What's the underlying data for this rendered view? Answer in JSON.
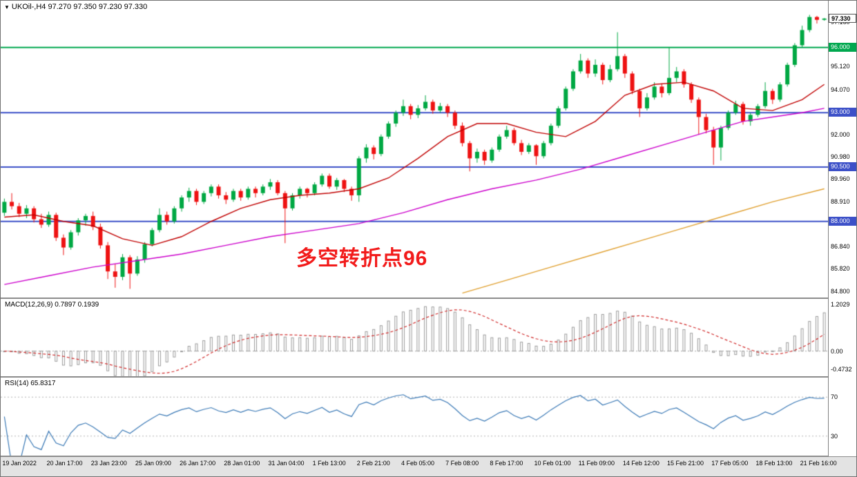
{
  "window": {
    "title_symbol": "UKOil-,H4",
    "title_ohlc": "97.270 97.350 97.230 97.330"
  },
  "chart_data": {
    "type": "candlestick",
    "symbol": "UKOil-",
    "timeframe": "H4",
    "ylim": [
      84.5,
      98.15
    ],
    "colors": {
      "up": "#00a843",
      "down": "#ee1212",
      "background": "#ffffff"
    },
    "x_label_step": 6,
    "x_labels": [
      "19 Jan 2022",
      "20 Jan 17:00",
      "23 Jan 23:00",
      "25 Jan 09:00",
      "26 Jan 17:00",
      "28 Jan 01:00",
      "31 Jan 04:00",
      "1 Feb 13:00",
      "2 Feb 21:00",
      "4 Feb 05:00",
      "7 Feb 08:00",
      "8 Feb 17:00",
      "10 Feb 01:00",
      "11 Feb 09:00",
      "14 Feb 12:00",
      "15 Feb 21:00",
      "17 Feb 05:00",
      "18 Feb 13:00",
      "21 Feb 16:00"
    ],
    "candles": [
      [
        88.4,
        89.05,
        88.25,
        88.9
      ],
      [
        88.9,
        89.3,
        88.55,
        88.7
      ],
      [
        88.7,
        88.85,
        88.2,
        88.35
      ],
      [
        88.35,
        88.75,
        88.15,
        88.6
      ],
      [
        88.6,
        88.7,
        87.95,
        88.1
      ],
      [
        88.1,
        88.35,
        87.7,
        87.85
      ],
      [
        87.85,
        88.45,
        87.75,
        88.3
      ],
      [
        88.3,
        88.4,
        87.1,
        87.25
      ],
      [
        87.25,
        87.4,
        86.45,
        86.8
      ],
      [
        86.8,
        87.6,
        86.7,
        87.5
      ],
      [
        87.5,
        88.15,
        87.35,
        88.05
      ],
      [
        88.05,
        88.35,
        87.8,
        88.25
      ],
      [
        88.25,
        88.45,
        87.6,
        87.75
      ],
      [
        87.75,
        87.9,
        86.75,
        86.9
      ],
      [
        86.9,
        87.05,
        85.35,
        85.7
      ],
      [
        85.7,
        86.05,
        84.95,
        85.45
      ],
      [
        85.45,
        86.5,
        85.3,
        86.35
      ],
      [
        86.35,
        86.45,
        84.9,
        85.6
      ],
      [
        85.6,
        86.4,
        85.5,
        86.25
      ],
      [
        86.25,
        87.05,
        86.1,
        86.95
      ],
      [
        86.95,
        87.7,
        86.85,
        87.6
      ],
      [
        87.6,
        88.6,
        87.5,
        88.3
      ],
      [
        88.3,
        88.45,
        87.85,
        88.0
      ],
      [
        88.0,
        88.7,
        87.9,
        88.6
      ],
      [
        88.6,
        89.2,
        88.45,
        89.1
      ],
      [
        89.1,
        89.55,
        88.9,
        89.4
      ],
      [
        89.4,
        89.5,
        88.75,
        88.9
      ],
      [
        88.9,
        89.4,
        88.8,
        89.3
      ],
      [
        89.3,
        89.7,
        89.15,
        89.6
      ],
      [
        89.6,
        89.7,
        89.05,
        89.2
      ],
      [
        89.2,
        89.35,
        88.8,
        89.0
      ],
      [
        89.0,
        89.5,
        88.9,
        89.4
      ],
      [
        89.4,
        89.5,
        88.95,
        89.1
      ],
      [
        89.1,
        89.6,
        89.0,
        89.5
      ],
      [
        89.5,
        89.6,
        89.1,
        89.3
      ],
      [
        89.3,
        89.7,
        89.2,
        89.6
      ],
      [
        89.6,
        89.95,
        89.45,
        89.8
      ],
      [
        89.8,
        89.9,
        89.2,
        89.3
      ],
      [
        89.3,
        89.4,
        87.0,
        88.6
      ],
      [
        88.6,
        89.3,
        88.5,
        89.2
      ],
      [
        89.2,
        89.6,
        89.05,
        89.5
      ],
      [
        89.5,
        89.55,
        89.1,
        89.3
      ],
      [
        89.3,
        89.8,
        89.2,
        89.7
      ],
      [
        89.7,
        90.2,
        89.6,
        90.1
      ],
      [
        90.1,
        90.2,
        89.5,
        89.6
      ],
      [
        89.6,
        90.0,
        89.45,
        89.9
      ],
      [
        89.9,
        89.95,
        89.35,
        89.5
      ],
      [
        89.5,
        89.6,
        88.95,
        89.2
      ],
      [
        89.2,
        91.0,
        88.9,
        90.9
      ],
      [
        90.9,
        91.55,
        90.7,
        91.4
      ],
      [
        91.4,
        91.5,
        90.85,
        91.1
      ],
      [
        91.1,
        92.0,
        91.0,
        91.9
      ],
      [
        91.9,
        92.6,
        91.8,
        92.5
      ],
      [
        92.5,
        93.1,
        92.35,
        93.0
      ],
      [
        93.0,
        93.6,
        92.85,
        93.3
      ],
      [
        93.3,
        93.4,
        92.7,
        92.9
      ],
      [
        92.9,
        93.35,
        92.75,
        93.2
      ],
      [
        93.2,
        93.8,
        93.1,
        93.5
      ],
      [
        93.5,
        93.6,
        92.95,
        93.1
      ],
      [
        93.1,
        93.45,
        93.0,
        93.3
      ],
      [
        93.3,
        93.4,
        92.8,
        93.0
      ],
      [
        93.0,
        93.1,
        92.25,
        92.4
      ],
      [
        92.4,
        92.55,
        91.45,
        91.6
      ],
      [
        91.6,
        91.7,
        90.3,
        90.9
      ],
      [
        90.9,
        91.35,
        90.7,
        91.2
      ],
      [
        91.2,
        91.3,
        90.6,
        90.8
      ],
      [
        90.8,
        91.4,
        90.7,
        91.3
      ],
      [
        91.3,
        92.0,
        91.2,
        91.9
      ],
      [
        91.9,
        92.4,
        91.8,
        92.2
      ],
      [
        92.2,
        92.3,
        91.5,
        91.6
      ],
      [
        91.6,
        91.75,
        91.05,
        91.2
      ],
      [
        91.2,
        91.6,
        91.1,
        91.5
      ],
      [
        91.5,
        91.55,
        90.6,
        91.0
      ],
      [
        91.0,
        91.7,
        90.9,
        91.6
      ],
      [
        91.6,
        92.5,
        91.5,
        92.4
      ],
      [
        92.4,
        93.3,
        92.3,
        93.2
      ],
      [
        93.2,
        94.2,
        93.1,
        94.1
      ],
      [
        94.1,
        95.0,
        94.0,
        94.9
      ],
      [
        94.9,
        95.7,
        94.8,
        95.4
      ],
      [
        95.4,
        95.5,
        94.6,
        94.8
      ],
      [
        94.8,
        95.45,
        94.65,
        95.2
      ],
      [
        95.2,
        95.3,
        94.3,
        94.5
      ],
      [
        94.5,
        95.2,
        94.4,
        95.0
      ],
      [
        95.0,
        96.7,
        94.9,
        95.6
      ],
      [
        95.6,
        95.7,
        94.6,
        94.8
      ],
      [
        94.8,
        94.9,
        93.85,
        94.0
      ],
      [
        94.0,
        94.1,
        92.8,
        93.2
      ],
      [
        93.2,
        93.9,
        93.1,
        93.7
      ],
      [
        93.7,
        94.4,
        93.6,
        94.2
      ],
      [
        94.2,
        94.35,
        93.7,
        93.9
      ],
      [
        93.9,
        96.0,
        93.8,
        94.6
      ],
      [
        94.6,
        95.1,
        94.4,
        94.9
      ],
      [
        94.9,
        95.0,
        94.15,
        94.3
      ],
      [
        94.3,
        94.4,
        93.45,
        93.6
      ],
      [
        93.6,
        93.7,
        92.0,
        92.8
      ],
      [
        92.8,
        92.95,
        92.05,
        92.2
      ],
      [
        92.2,
        92.35,
        90.6,
        91.4
      ],
      [
        91.4,
        92.4,
        90.8,
        92.3
      ],
      [
        92.3,
        93.1,
        92.2,
        93.0
      ],
      [
        93.0,
        93.55,
        92.9,
        93.4
      ],
      [
        93.4,
        93.5,
        92.45,
        92.6
      ],
      [
        92.6,
        93.0,
        92.4,
        92.9
      ],
      [
        92.9,
        93.4,
        92.8,
        93.3
      ],
      [
        93.3,
        94.4,
        93.2,
        94.0
      ],
      [
        94.0,
        94.1,
        93.4,
        93.6
      ],
      [
        93.6,
        94.4,
        93.5,
        94.3
      ],
      [
        94.3,
        95.3,
        94.2,
        95.2
      ],
      [
        95.2,
        96.2,
        95.1,
        96.1
      ],
      [
        96.1,
        97.0,
        96.0,
        96.8
      ],
      [
        96.8,
        97.5,
        96.7,
        97.4
      ],
      [
        97.4,
        97.45,
        97.1,
        97.27
      ],
      [
        97.27,
        97.35,
        97.23,
        97.33
      ]
    ],
    "hlines": [
      {
        "value": 96.0,
        "label": "96.000",
        "color": "#00a84f"
      },
      {
        "value": 93.0,
        "label": "93.000",
        "color": "#3c50c8"
      },
      {
        "value": 90.5,
        "label": "90.500",
        "color": "#3c50c8"
      },
      {
        "value": 88.0,
        "label": "88.000",
        "color": "#3c50c8"
      }
    ],
    "current_price": {
      "value": 97.33,
      "label": "97.330"
    },
    "y_ticks": [
      {
        "value": 97.16,
        "label": "97.160"
      },
      {
        "value": 95.12,
        "label": "95.120"
      },
      {
        "value": 94.07,
        "label": "94.070"
      },
      {
        "value": 92.0,
        "label": "92.000"
      },
      {
        "value": 90.98,
        "label": "90.980"
      },
      {
        "value": 89.96,
        "label": "89.960"
      },
      {
        "value": 88.91,
        "label": "88.910"
      },
      {
        "value": 86.84,
        "label": "86.840"
      },
      {
        "value": 85.82,
        "label": "85.820"
      },
      {
        "value": 84.8,
        "label": "84.800"
      }
    ],
    "ma_lines": [
      {
        "name": "fast-ma",
        "color": "#c00000",
        "points": [
          [
            0,
            88.2
          ],
          [
            4,
            88.3
          ],
          [
            8,
            88.0
          ],
          [
            12,
            87.8
          ],
          [
            16,
            87.2
          ],
          [
            20,
            86.9
          ],
          [
            24,
            87.3
          ],
          [
            28,
            88.0
          ],
          [
            32,
            88.6
          ],
          [
            36,
            89.0
          ],
          [
            40,
            89.2
          ],
          [
            44,
            89.3
          ],
          [
            48,
            89.5
          ],
          [
            52,
            90.0
          ],
          [
            56,
            90.9
          ],
          [
            60,
            91.9
          ],
          [
            64,
            92.5
          ],
          [
            68,
            92.5
          ],
          [
            72,
            92.1
          ],
          [
            76,
            91.9
          ],
          [
            80,
            92.6
          ],
          [
            84,
            93.8
          ],
          [
            88,
            94.3
          ],
          [
            92,
            94.4
          ],
          [
            96,
            94.0
          ],
          [
            100,
            93.2
          ],
          [
            104,
            93.1
          ],
          [
            108,
            93.6
          ],
          [
            111,
            94.3
          ]
        ]
      },
      {
        "name": "mid-ma",
        "color": "#cc00cc",
        "points": [
          [
            0,
            85.1
          ],
          [
            6,
            85.5
          ],
          [
            12,
            85.9
          ],
          [
            18,
            86.2
          ],
          [
            24,
            86.5
          ],
          [
            30,
            86.9
          ],
          [
            36,
            87.3
          ],
          [
            42,
            87.6
          ],
          [
            48,
            87.9
          ],
          [
            54,
            88.4
          ],
          [
            60,
            89.0
          ],
          [
            66,
            89.5
          ],
          [
            72,
            89.9
          ],
          [
            78,
            90.4
          ],
          [
            84,
            91.0
          ],
          [
            90,
            91.6
          ],
          [
            96,
            92.2
          ],
          [
            100,
            92.6
          ],
          [
            104,
            92.8
          ],
          [
            108,
            93.0
          ],
          [
            111,
            93.2
          ]
        ]
      },
      {
        "name": "slow-ma",
        "color": "#e0a030",
        "points": [
          [
            62,
            84.7
          ],
          [
            68,
            85.3
          ],
          [
            74,
            85.9
          ],
          [
            80,
            86.5
          ],
          [
            86,
            87.1
          ],
          [
            92,
            87.7
          ],
          [
            98,
            88.3
          ],
          [
            104,
            88.9
          ],
          [
            111,
            89.5
          ]
        ]
      }
    ],
    "annotation": {
      "text": "多空转折点96",
      "color": "#f21b1b"
    },
    "indicators": [
      {
        "name": "MACD",
        "label": "MACD(12,26,9) 0.7897 0.1939",
        "values_text": [
          "0.7897",
          "0.1939"
        ],
        "ylim": [
          -0.65,
          1.35
        ],
        "y_ticks": [
          {
            "value": 1.2029,
            "label": "1.2029"
          },
          {
            "value": 0,
            "label": "0.00"
          },
          {
            "value": -0.4732,
            "label": "-0.4732"
          }
        ],
        "histogram_color": "#9a9a9a",
        "signal_color": "#d02828"
      },
      {
        "name": "RSI",
        "label": "RSI(14) 65.8317",
        "value_text": "65.8317",
        "ylim": [
          10,
          90
        ],
        "levels": [
          70,
          30
        ],
        "y_ticks": [
          {
            "value": 70,
            "label": "70"
          },
          {
            "value": 30,
            "label": "30"
          }
        ],
        "line_color": "#3978b5",
        "level_color": "#b0b0b0"
      }
    ]
  }
}
